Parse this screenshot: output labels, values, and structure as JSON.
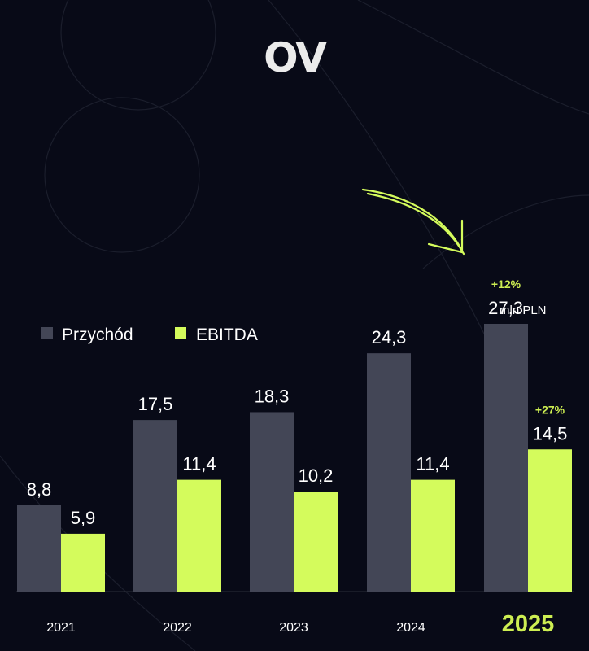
{
  "brand": {
    "logo_text": "OV"
  },
  "colors": {
    "background": "#080a17",
    "revenue": "#434656",
    "ebitda": "#d4fb5c",
    "text": "#ffffff",
    "accent_text": "#cdee52"
  },
  "chart_data": {
    "type": "bar",
    "categories": [
      "2021",
      "2022",
      "2023",
      "2024",
      "2025"
    ],
    "highlight_category": "2025",
    "unit_label": "mln PLN",
    "series": [
      {
        "name": "Przychód",
        "values": [
          8.8,
          17.5,
          18.3,
          24.3,
          27.3
        ],
        "labels": [
          "8,8",
          "17,5",
          "18,3",
          "24,3",
          "27,3"
        ]
      },
      {
        "name": "EBITDA",
        "values": [
          5.9,
          11.4,
          10.2,
          11.4,
          14.5
        ],
        "labels": [
          "5,9",
          "11,4",
          "10,2",
          "11,4",
          "14,5"
        ]
      }
    ],
    "annotations": [
      {
        "category": "2025",
        "series": "Przychód",
        "text": "+12%"
      },
      {
        "category": "2025",
        "series": "EBITDA",
        "text": "+27%"
      }
    ],
    "legend_position": "top-left",
    "grid": false,
    "ylim": [
      0,
      30
    ]
  }
}
